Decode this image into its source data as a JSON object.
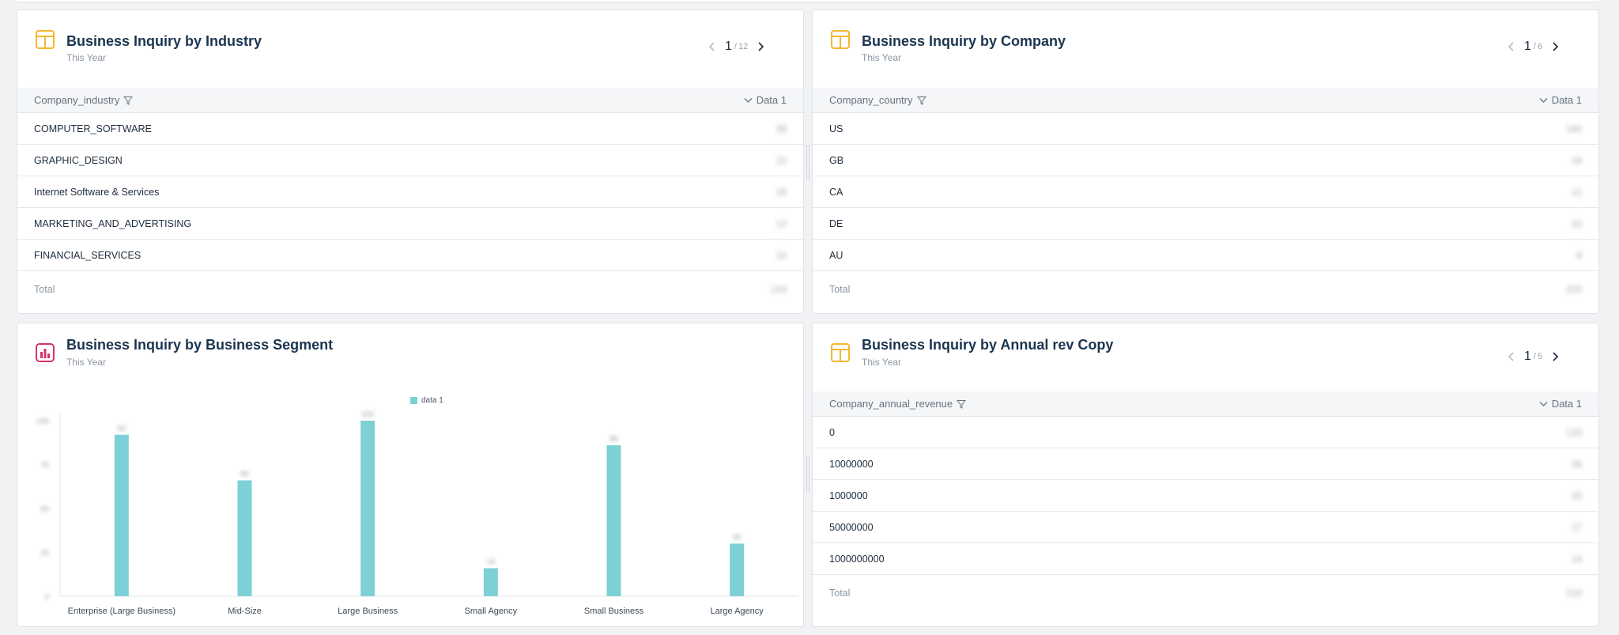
{
  "cards": {
    "industry": {
      "title": "Business Inquiry by Industry",
      "subtitle": "This Year",
      "pager": {
        "current": "1",
        "separator": "/",
        "total": "12"
      },
      "columns": [
        "Company_industry",
        "Data 1"
      ],
      "rows": [
        {
          "label": "COMPUTER_SOFTWARE",
          "value": "38"
        },
        {
          "label": "GRAPHIC_DESIGN",
          "value": "22"
        },
        {
          "label": "Internet Software & Services",
          "value": "16"
        },
        {
          "label": "MARKETING_AND_ADVERTISING",
          "value": "12"
        },
        {
          "label": "FINANCIAL_SERVICES",
          "value": "10"
        }
      ],
      "total": {
        "label": "Total",
        "value": "143"
      }
    },
    "company": {
      "title": "Business Inquiry by Company",
      "subtitle": "This Year",
      "pager": {
        "current": "1",
        "separator": "/",
        "total": "6"
      },
      "columns": [
        "Company_country",
        "Data 1"
      ],
      "rows": [
        {
          "label": "US",
          "value": "160"
        },
        {
          "label": "GB",
          "value": "18"
        },
        {
          "label": "CA",
          "value": "12"
        },
        {
          "label": "DE",
          "value": "10"
        },
        {
          "label": "AU",
          "value": "8"
        }
      ],
      "total": {
        "label": "Total",
        "value": "220"
      }
    },
    "segment": {
      "title": "Business Inquiry by Business Segment",
      "subtitle": "This Year",
      "legend": "data 1"
    },
    "revenue": {
      "title": "Business Inquiry by Annual rev Copy",
      "subtitle": "This Year",
      "pager": {
        "current": "1",
        "separator": "/",
        "total": "5"
      },
      "columns": [
        "Company_annual_revenue",
        "Data 1"
      ],
      "rows": [
        {
          "label": "0",
          "value": "120"
        },
        {
          "label": "10000000",
          "value": "26"
        },
        {
          "label": "1000000",
          "value": "20"
        },
        {
          "label": "50000000",
          "value": "17"
        },
        {
          "label": "1000000000",
          "value": "14"
        }
      ],
      "total": {
        "label": "Total",
        "value": "210"
      }
    }
  },
  "colors": {
    "bar": "#7dd0d6",
    "table_icon": "#f5b730",
    "chart_icon": "#d6336c"
  },
  "chart_data": {
    "type": "bar",
    "title": "Business Inquiry by Business Segment",
    "categories": [
      "Enterprise (Large Business)",
      "Mid-Size",
      "Large Business",
      "Small Agency",
      "Small Business",
      "Large Agency"
    ],
    "series": [
      {
        "name": "data 1",
        "values": [
          92,
          66,
          100,
          16,
          86,
          30
        ]
      }
    ],
    "ylim": [
      0,
      100
    ],
    "yticks": [
      0,
      25,
      50,
      75,
      100
    ]
  }
}
